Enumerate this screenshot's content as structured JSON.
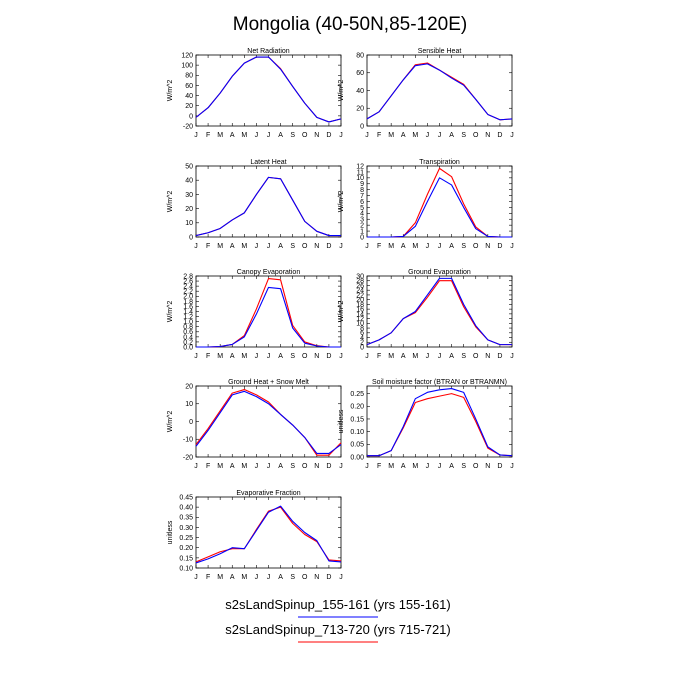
{
  "title": "Mongolia (40-50N,85-120E)",
  "months": [
    "J",
    "F",
    "M",
    "A",
    "M",
    "J",
    "J",
    "A",
    "S",
    "O",
    "N",
    "D",
    "J"
  ],
  "legend": [
    {
      "label": "s2sLandSpinup_155-161 (yrs 155-161)",
      "color": "#0000ff"
    },
    {
      "label": "s2sLandSpinup_713-720 (yrs 715-721)",
      "color": "#ff0000"
    }
  ],
  "chart_data": [
    {
      "type": "line",
      "title": "Net Radiation",
      "ylabel": "W/m^2",
      "ylim": [
        -20,
        120
      ],
      "yticks": [
        "-20",
        "0",
        "20",
        "40",
        "60",
        "80",
        "100",
        "120"
      ],
      "series": [
        {
          "name": "s2sLandSpinup_155-161",
          "color": "#0000ff",
          "values": [
            -3,
            16,
            45,
            78,
            104,
            116,
            116,
            92,
            58,
            25,
            -3,
            -12,
            -6
          ]
        },
        {
          "name": "s2sLandSpinup_713-720",
          "color": "#ff0000",
          "values": [
            -3,
            16,
            45,
            78,
            104,
            116,
            116,
            93,
            58,
            25,
            -3,
            -12,
            -6
          ]
        }
      ]
    },
    {
      "type": "line",
      "title": "Sensible Heat",
      "ylabel": "W/m^2",
      "ylim": [
        0,
        80
      ],
      "yticks": [
        "0",
        "20",
        "40",
        "60",
        "80"
      ],
      "series": [
        {
          "name": "s2sLandSpinup_155-161",
          "color": "#0000ff",
          "values": [
            8,
            16,
            34,
            52,
            68,
            70,
            63,
            54,
            46,
            30,
            13,
            7,
            8
          ]
        },
        {
          "name": "s2sLandSpinup_713-720",
          "color": "#ff0000",
          "values": [
            8,
            16,
            34,
            52,
            69,
            71,
            63,
            55,
            47,
            30,
            13,
            7,
            8
          ]
        }
      ]
    },
    {
      "type": "line",
      "title": "Latent Heat",
      "ylabel": "W/m^2",
      "ylim": [
        0,
        50
      ],
      "yticks": [
        "0",
        "10",
        "20",
        "30",
        "40",
        "50"
      ],
      "series": [
        {
          "name": "s2sLandSpinup_155-161",
          "color": "#0000ff",
          "values": [
            1,
            3,
            6,
            12,
            17,
            30,
            42,
            41,
            26,
            11,
            4,
            1,
            1
          ]
        },
        {
          "name": "s2sLandSpinup_713-720",
          "color": "#ff0000",
          "values": [
            1,
            3,
            6,
            12,
            17,
            30,
            42,
            41,
            26,
            11,
            4,
            1,
            1
          ]
        }
      ]
    },
    {
      "type": "line",
      "title": "Transpiration",
      "ylabel": "W/m^2",
      "ylim": [
        0,
        12
      ],
      "yticks": [
        "0",
        "1",
        "2",
        "3",
        "4",
        "5",
        "6",
        "7",
        "8",
        "9",
        "10",
        "11",
        "12"
      ],
      "series": [
        {
          "name": "s2sLandSpinup_155-161",
          "color": "#0000ff",
          "values": [
            0,
            0,
            0,
            0.1,
            1.8,
            6,
            10,
            8.8,
            5,
            1.4,
            0.1,
            0,
            0
          ]
        },
        {
          "name": "s2sLandSpinup_713-720",
          "color": "#ff0000",
          "values": [
            0,
            0,
            0,
            0.1,
            2.4,
            7.2,
            11.6,
            10.2,
            5.6,
            1.7,
            0.1,
            0,
            0
          ]
        }
      ]
    },
    {
      "type": "line",
      "title": "Canopy Evaporation",
      "ylabel": "W/m^2",
      "ylim": [
        0,
        2.8
      ],
      "yticks": [
        "0.0",
        "0.2",
        "0.4",
        "0.6",
        "0.8",
        "1.0",
        "1.2",
        "1.4",
        "1.6",
        "1.8",
        "2.0",
        "2.2",
        "2.4",
        "2.6",
        "2.8"
      ],
      "series": [
        {
          "name": "s2sLandSpinup_155-161",
          "color": "#0000ff",
          "values": [
            0,
            0,
            0.02,
            0.1,
            0.4,
            1.3,
            2.35,
            2.3,
            0.75,
            0.15,
            0.04,
            0,
            0
          ]
        },
        {
          "name": "s2sLandSpinup_713-720",
          "color": "#ff0000",
          "values": [
            0,
            0,
            0.02,
            0.1,
            0.45,
            1.5,
            2.7,
            2.65,
            0.85,
            0.2,
            0.05,
            0,
            0
          ]
        }
      ]
    },
    {
      "type": "line",
      "title": "Ground Evaporation",
      "ylabel": "W/m^2",
      "ylim": [
        0,
        30
      ],
      "yticks": [
        "0",
        "2",
        "4",
        "6",
        "8",
        "10",
        "12",
        "14",
        "16",
        "18",
        "20",
        "22",
        "24",
        "26",
        "28",
        "30"
      ],
      "series": [
        {
          "name": "s2sLandSpinup_155-161",
          "color": "#0000ff",
          "values": [
            1,
            3,
            6,
            12,
            15,
            22,
            29,
            29,
            18,
            9,
            3,
            1,
            1
          ]
        },
        {
          "name": "s2sLandSpinup_713-720",
          "color": "#ff0000",
          "values": [
            1,
            3,
            6,
            12,
            14.5,
            21,
            28,
            28,
            17,
            8.5,
            3,
            1,
            1
          ]
        }
      ]
    },
    {
      "type": "line",
      "title": "Ground Heat + Snow Melt",
      "ylabel": "W/m^2",
      "ylim": [
        -20,
        20
      ],
      "yticks": [
        "-20",
        "-10",
        "0",
        "10",
        "20"
      ],
      "series": [
        {
          "name": "s2sLandSpinup_155-161",
          "color": "#0000ff",
          "values": [
            -14,
            -5,
            5,
            15,
            17,
            14,
            10,
            4,
            -2,
            -9,
            -18,
            -18,
            -13
          ]
        },
        {
          "name": "s2sLandSpinup_713-720",
          "color": "#ff0000",
          "values": [
            -13,
            -4,
            6,
            16,
            18,
            15,
            11,
            4,
            -2,
            -9,
            -19,
            -19,
            -12
          ]
        }
      ]
    },
    {
      "type": "line",
      "title": "Soil moisture factor (BTRAN or BTRANMN)",
      "ylabel": "unitless",
      "ylim": [
        0,
        0.28
      ],
      "yticks": [
        "0.00",
        "0.05",
        "0.10",
        "0.15",
        "0.20",
        "0.25"
      ],
      "series": [
        {
          "name": "s2sLandSpinup_155-161",
          "color": "#0000ff",
          "values": [
            0.005,
            0.005,
            0.025,
            0.12,
            0.23,
            0.255,
            0.265,
            0.27,
            0.255,
            0.15,
            0.04,
            0.008,
            0.005
          ]
        },
        {
          "name": "s2sLandSpinup_713-720",
          "color": "#ff0000",
          "values": [
            0.005,
            0.005,
            0.025,
            0.115,
            0.215,
            0.23,
            0.24,
            0.25,
            0.235,
            0.14,
            0.035,
            0.008,
            0.005
          ]
        }
      ]
    },
    {
      "type": "line",
      "title": "Evaporative Fraction",
      "ylabel": "unitless",
      "ylim": [
        0.1,
        0.45
      ],
      "yticks": [
        "0.10",
        "0.15",
        "0.20",
        "0.25",
        "0.30",
        "0.35",
        "0.40",
        "0.45"
      ],
      "series": [
        {
          "name": "s2sLandSpinup_155-161",
          "color": "#0000ff",
          "values": [
            0.125,
            0.145,
            0.17,
            0.2,
            0.195,
            0.285,
            0.375,
            0.405,
            0.33,
            0.275,
            0.235,
            0.135,
            0.13
          ]
        },
        {
          "name": "s2sLandSpinup_713-720",
          "color": "#ff0000",
          "values": [
            0.13,
            0.155,
            0.18,
            0.195,
            0.195,
            0.29,
            0.38,
            0.4,
            0.32,
            0.265,
            0.23,
            0.14,
            0.135
          ]
        }
      ]
    }
  ]
}
